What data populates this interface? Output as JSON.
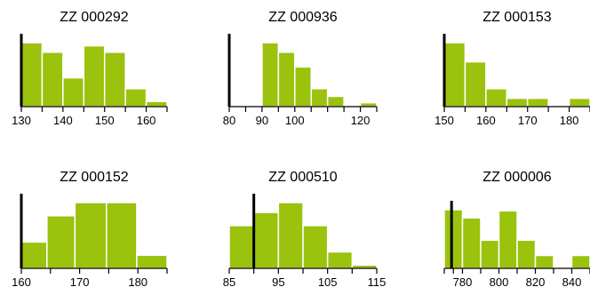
{
  "colors": {
    "bar": "#9bc20c",
    "bar_stroke": "#ffffff",
    "axis": "#000000",
    "marker": "#000000"
  },
  "chart_data": [
    {
      "type": "bar",
      "title": "ZZ 000292",
      "xlim": [
        130,
        165
      ],
      "tick_values": [
        130,
        135,
        140,
        145,
        150,
        155,
        160,
        165
      ],
      "tick_labels": [
        "130",
        "",
        "140",
        "",
        "150",
        "",
        "160",
        ""
      ],
      "bin_edges": [
        130,
        135,
        140,
        145,
        150,
        155,
        160,
        165
      ],
      "counts": [
        10,
        8.5,
        4.5,
        9.5,
        8.5,
        2.8,
        0.8
      ],
      "marker_x": 130
    },
    {
      "type": "bar",
      "title": "ZZ 000936",
      "xlim": [
        80,
        125
      ],
      "tick_values": [
        80,
        90,
        100,
        120
      ],
      "tick_labels": [
        "80",
        "90",
        "100",
        "120"
      ],
      "minor_ticks": [
        80,
        85,
        90,
        95,
        100,
        105,
        110,
        115,
        120,
        125
      ],
      "bin_edges": [
        90,
        95,
        100,
        105,
        110,
        115,
        120,
        125
      ],
      "counts": [
        10,
        8.5,
        6.2,
        2.8,
        1.6,
        0,
        0.6
      ],
      "marker_x": 80
    },
    {
      "type": "bar",
      "title": "ZZ 000153",
      "xlim": [
        150,
        185
      ],
      "tick_values": [
        150,
        155,
        160,
        165,
        170,
        175,
        180,
        185
      ],
      "tick_labels": [
        "150",
        "",
        "160",
        "",
        "170",
        "",
        "180",
        ""
      ],
      "bin_edges": [
        150,
        155,
        160,
        165,
        170,
        175,
        180,
        185
      ],
      "counts": [
        10,
        7,
        2.8,
        1.3,
        1.3,
        0,
        1.3
      ],
      "marker_x": 150
    },
    {
      "type": "bar",
      "title": "ZZ 000152",
      "xlim": [
        160,
        185
      ],
      "tick_values": [
        160,
        165,
        170,
        175,
        180,
        185
      ],
      "tick_labels": [
        "160",
        "",
        "170",
        "",
        "180",
        ""
      ],
      "bin_edges": [
        160,
        164.4,
        169.2,
        174.6,
        179.8,
        185
      ],
      "counts": [
        4,
        8,
        10,
        10,
        2
      ],
      "marker_x": 160
    },
    {
      "type": "bar",
      "title": "ZZ 000510",
      "xlim": [
        85,
        115
      ],
      "tick_values": [
        85,
        90,
        95,
        100,
        105,
        110,
        115
      ],
      "tick_labels": [
        "85",
        "",
        "95",
        "",
        "105",
        "",
        "115"
      ],
      "bin_edges": [
        85,
        90,
        95,
        100,
        105,
        110,
        115
      ],
      "counts": [
        6.5,
        8.5,
        10,
        6.5,
        2.5,
        0.5
      ],
      "marker_x": 90
    },
    {
      "type": "bar",
      "title": "ZZ 000006",
      "xlim": [
        770,
        850
      ],
      "tick_values": [
        780,
        800,
        820,
        840
      ],
      "tick_labels": [
        "780",
        "800",
        "820",
        "840"
      ],
      "minor_ticks": [
        770,
        775,
        780,
        790,
        800,
        810,
        820,
        830,
        840,
        850
      ],
      "bin_edges": [
        770,
        780,
        790,
        800,
        810,
        820,
        830,
        840,
        850
      ],
      "counts": [
        10,
        8.6,
        4.8,
        9.8,
        4.8,
        2.2,
        0,
        2.2
      ],
      "marker_x": 774
    }
  ]
}
